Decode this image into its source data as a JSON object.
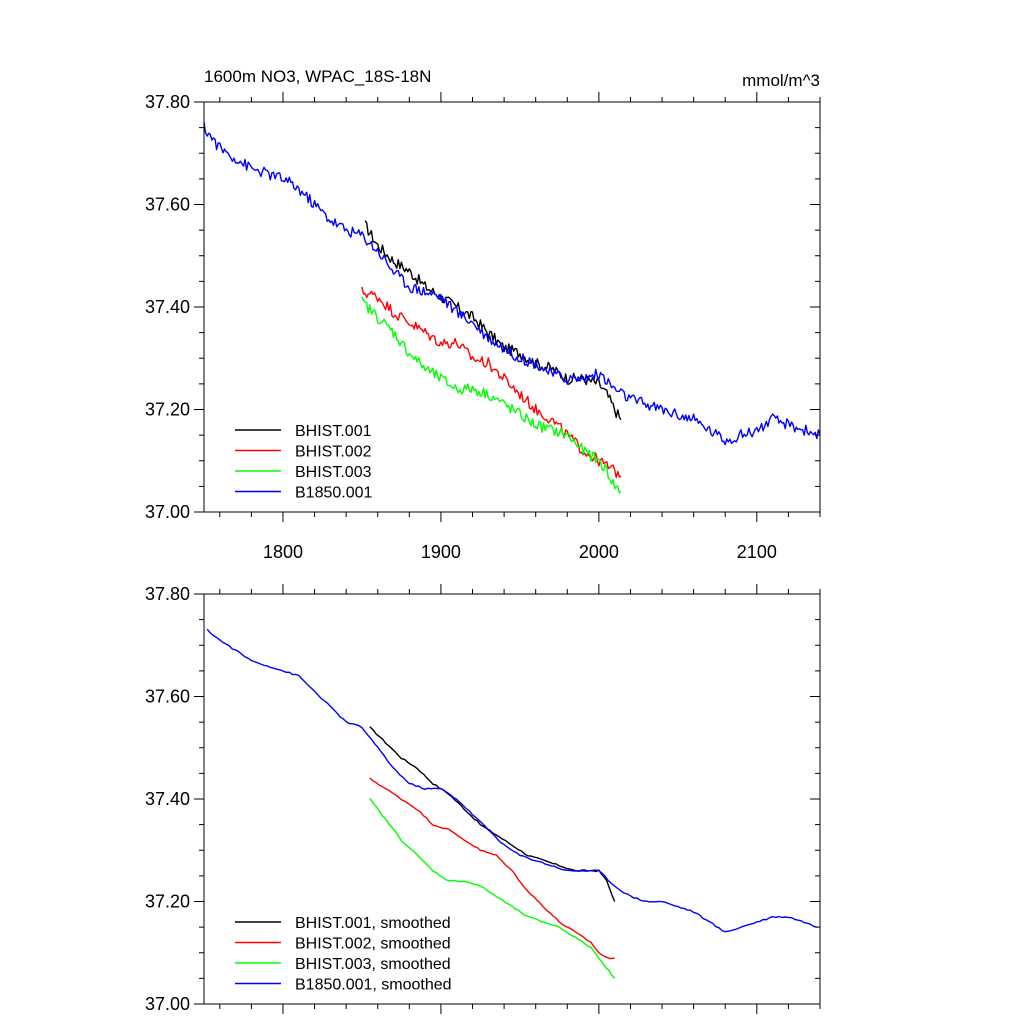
{
  "chart_data": [
    {
      "type": "line",
      "title_left": "1600m NO3, WPAC_18S-18N",
      "title_right": "mmol/m^3",
      "xlim": [
        1750,
        2140
      ],
      "ylim": [
        37.0,
        37.8
      ],
      "x_ticks": [
        1800,
        1900,
        2000,
        2100
      ],
      "x_tick_labels": [
        "1800",
        "1900",
        "2000",
        "2100"
      ],
      "y_ticks": [
        37.0,
        37.2,
        37.4,
        37.6,
        37.8
      ],
      "y_tick_labels": [
        "37.00",
        "37.20",
        "37.40",
        "37.60",
        "37.80"
      ],
      "legend_position": "bottom-left",
      "series": [
        {
          "name": "BHIST.001",
          "color": "#000000",
          "x": [
            1852,
            1860,
            1870,
            1880,
            1890,
            1900,
            1910,
            1920,
            1930,
            1940,
            1950,
            1960,
            1970,
            1980,
            1990,
            2000,
            2005,
            2010,
            2014
          ],
          "y": [
            37.56,
            37.52,
            37.49,
            37.47,
            37.44,
            37.42,
            37.4,
            37.38,
            37.35,
            37.32,
            37.31,
            37.29,
            37.28,
            37.26,
            37.26,
            37.25,
            37.23,
            37.2,
            37.18
          ]
        },
        {
          "name": "BHIST.002",
          "color": "#ff0000",
          "x": [
            1850,
            1860,
            1870,
            1880,
            1890,
            1900,
            1910,
            1920,
            1930,
            1940,
            1950,
            1960,
            1970,
            1980,
            1990,
            2000,
            2005,
            2010,
            2014
          ],
          "y": [
            37.43,
            37.42,
            37.39,
            37.37,
            37.35,
            37.33,
            37.33,
            37.3,
            37.29,
            37.26,
            37.23,
            37.2,
            37.18,
            37.15,
            37.12,
            37.1,
            37.09,
            37.08,
            37.07
          ]
        },
        {
          "name": "BHIST.003",
          "color": "#00ff00",
          "x": [
            1850,
            1860,
            1870,
            1880,
            1890,
            1900,
            1910,
            1920,
            1930,
            1940,
            1950,
            1960,
            1970,
            1980,
            1990,
            2000,
            2005,
            2010,
            2014
          ],
          "y": [
            37.41,
            37.38,
            37.35,
            37.31,
            37.28,
            37.26,
            37.24,
            37.24,
            37.23,
            37.21,
            37.19,
            37.17,
            37.16,
            37.15,
            37.12,
            37.1,
            37.08,
            37.05,
            37.04
          ]
        },
        {
          "name": "B1850.001",
          "color": "#0000ff",
          "x": [
            1750,
            1760,
            1770,
            1780,
            1790,
            1800,
            1810,
            1820,
            1830,
            1840,
            1850,
            1860,
            1870,
            1880,
            1890,
            1900,
            1910,
            1920,
            1930,
            1940,
            1950,
            1960,
            1970,
            1980,
            1990,
            2000,
            2010,
            2020,
            2030,
            2040,
            2050,
            2060,
            2070,
            2080,
            2090,
            2100,
            2110,
            2120,
            2130,
            2140
          ],
          "y": [
            37.75,
            37.71,
            37.69,
            37.67,
            37.66,
            37.65,
            37.63,
            37.6,
            37.57,
            37.55,
            37.54,
            37.51,
            37.47,
            37.44,
            37.43,
            37.42,
            37.39,
            37.37,
            37.34,
            37.32,
            37.3,
            37.29,
            37.27,
            37.26,
            37.26,
            37.27,
            37.24,
            37.22,
            37.21,
            37.2,
            37.19,
            37.18,
            37.16,
            37.14,
            37.15,
            37.16,
            37.18,
            37.17,
            37.16,
            37.15
          ]
        }
      ]
    },
    {
      "type": "line",
      "xlim": [
        1750,
        2140
      ],
      "ylim": [
        37.0,
        37.8
      ],
      "x_ticks": [
        1800,
        1900,
        2000,
        2100
      ],
      "y_ticks": [
        37.0,
        37.2,
        37.4,
        37.6,
        37.8
      ],
      "y_tick_labels": [
        "37.00",
        "37.20",
        "37.40",
        "37.60",
        "37.80"
      ],
      "legend_position": "bottom-left",
      "series": [
        {
          "name": "BHIST.001, smoothed",
          "color": "#000000",
          "x": [
            1855,
            1865,
            1875,
            1885,
            1895,
            1905,
            1915,
            1925,
            1935,
            1945,
            1955,
            1965,
            1975,
            1985,
            1995,
            2000,
            2005,
            2010
          ],
          "y": [
            37.54,
            37.51,
            37.48,
            37.46,
            37.43,
            37.41,
            37.38,
            37.35,
            37.33,
            37.31,
            37.29,
            37.28,
            37.27,
            37.26,
            37.26,
            37.26,
            37.24,
            37.2
          ]
        },
        {
          "name": "BHIST.002, smoothed",
          "color": "#ff0000",
          "x": [
            1855,
            1865,
            1875,
            1885,
            1895,
            1905,
            1915,
            1925,
            1935,
            1945,
            1955,
            1965,
            1975,
            1985,
            1995,
            2000,
            2005,
            2010
          ],
          "y": [
            37.44,
            37.42,
            37.4,
            37.38,
            37.35,
            37.34,
            37.32,
            37.3,
            37.29,
            37.26,
            37.22,
            37.19,
            37.16,
            37.14,
            37.12,
            37.1,
            37.09,
            37.09
          ]
        },
        {
          "name": "BHIST.003, smoothed",
          "color": "#00ff00",
          "x": [
            1855,
            1865,
            1875,
            1885,
            1895,
            1905,
            1915,
            1925,
            1935,
            1945,
            1955,
            1965,
            1975,
            1985,
            1995,
            2000,
            2005,
            2010
          ],
          "y": [
            37.4,
            37.36,
            37.32,
            37.29,
            37.26,
            37.24,
            37.24,
            37.23,
            37.21,
            37.19,
            37.17,
            37.16,
            37.15,
            37.13,
            37.11,
            37.09,
            37.07,
            37.05
          ]
        },
        {
          "name": "B1850.001, smoothed",
          "color": "#0000ff",
          "x": [
            1752,
            1760,
            1770,
            1780,
            1790,
            1800,
            1810,
            1820,
            1830,
            1840,
            1850,
            1860,
            1870,
            1880,
            1890,
            1900,
            1910,
            1920,
            1930,
            1940,
            1950,
            1960,
            1970,
            1980,
            1990,
            2000,
            2010,
            2020,
            2030,
            2040,
            2050,
            2060,
            2070,
            2080,
            2090,
            2100,
            2110,
            2120,
            2130,
            2138
          ],
          "y": [
            37.73,
            37.71,
            37.69,
            37.67,
            37.66,
            37.65,
            37.64,
            37.61,
            37.58,
            37.55,
            37.54,
            37.5,
            37.46,
            37.43,
            37.42,
            37.42,
            37.4,
            37.37,
            37.34,
            37.31,
            37.29,
            37.28,
            37.27,
            37.26,
            37.26,
            37.26,
            37.23,
            37.21,
            37.2,
            37.2,
            37.19,
            37.18,
            37.16,
            37.14,
            37.15,
            37.16,
            37.17,
            37.17,
            37.16,
            37.15
          ]
        }
      ]
    }
  ]
}
